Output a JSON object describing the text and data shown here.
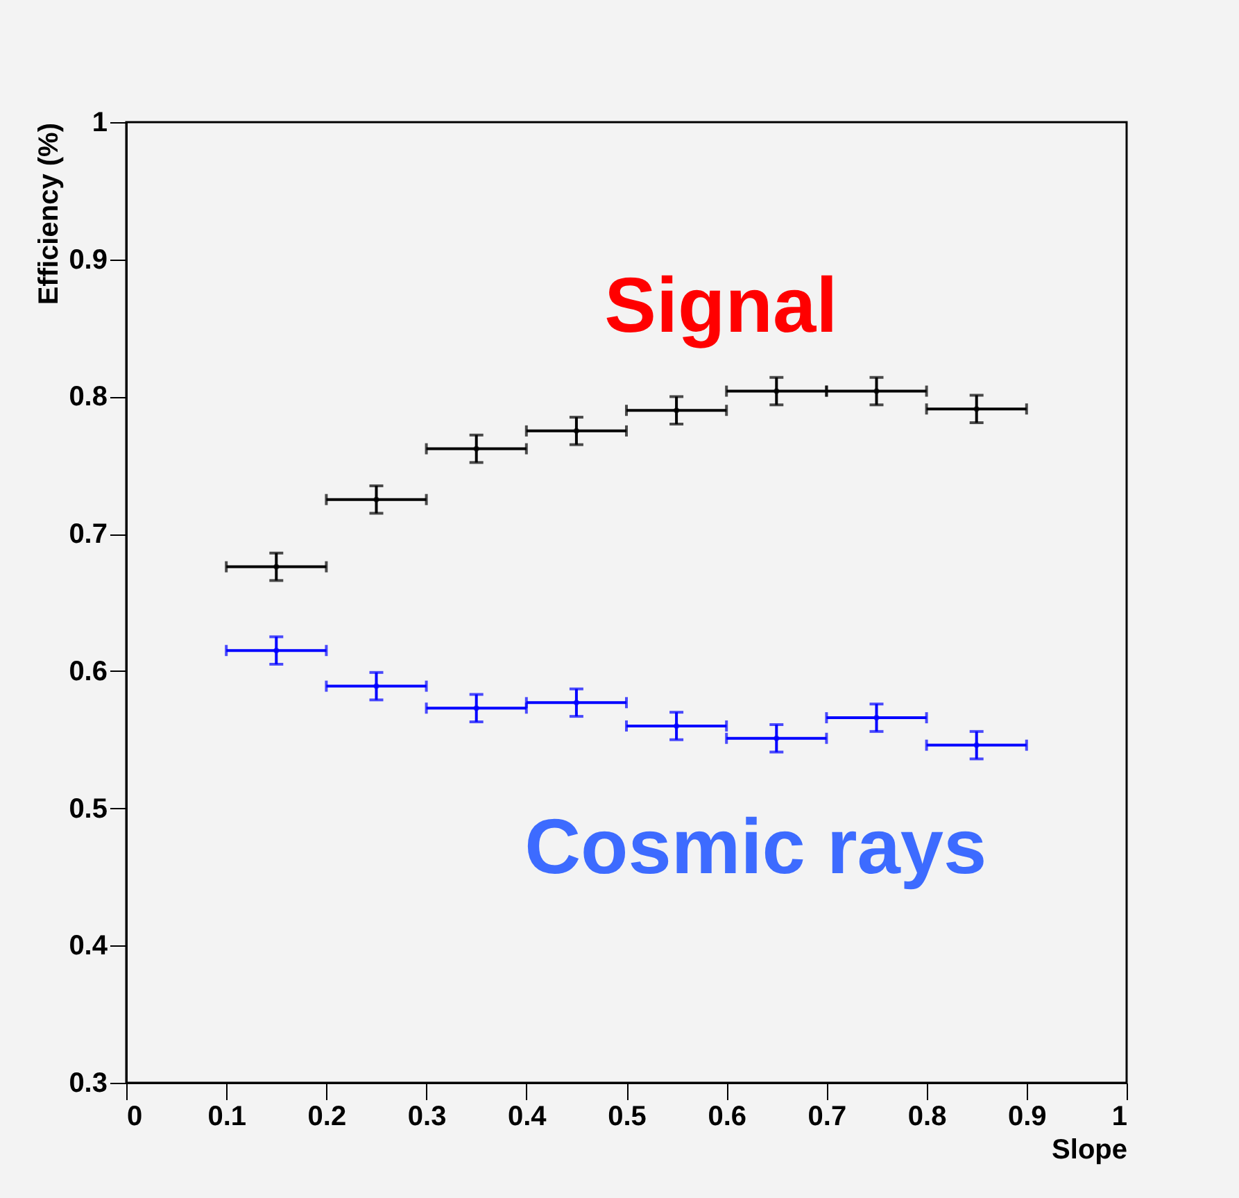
{
  "chart_data": {
    "type": "scatter",
    "xlabel": "Slope",
    "ylabel": "Efficiency (%)",
    "x": [
      0.15,
      0.25,
      0.35,
      0.45,
      0.55,
      0.65,
      0.75,
      0.85
    ],
    "xlim": [
      0,
      1
    ],
    "xticks": [
      0,
      0.1,
      0.2,
      0.3,
      0.4,
      0.5,
      0.6,
      0.7,
      0.8,
      0.9,
      1
    ],
    "ylim": [
      0.3,
      1
    ],
    "yticks": [
      0.3,
      0.4,
      0.5,
      0.6,
      0.7,
      0.8,
      0.9,
      1
    ],
    "series": [
      {
        "name": "Signal",
        "color": "#000000",
        "values": [
          0.676,
          0.725,
          0.762,
          0.775,
          0.79,
          0.804,
          0.804,
          0.791
        ],
        "errors": [
          0.01,
          0.01,
          0.01,
          0.01,
          0.01,
          0.01,
          0.01,
          0.01
        ],
        "xerrors": [
          0.05,
          0.05,
          0.05,
          0.05,
          0.05,
          0.05,
          0.05,
          0.05
        ]
      },
      {
        "name": "Cosmic rays",
        "color": "#0000ff",
        "values": [
          0.615,
          0.589,
          0.573,
          0.577,
          0.56,
          0.551,
          0.566,
          0.546
        ],
        "errors": [
          0.01,
          0.01,
          0.01,
          0.01,
          0.01,
          0.01,
          0.01,
          0.01
        ],
        "xerrors": [
          0.05,
          0.05,
          0.05,
          0.05,
          0.05,
          0.05,
          0.05,
          0.05
        ]
      }
    ]
  }
}
